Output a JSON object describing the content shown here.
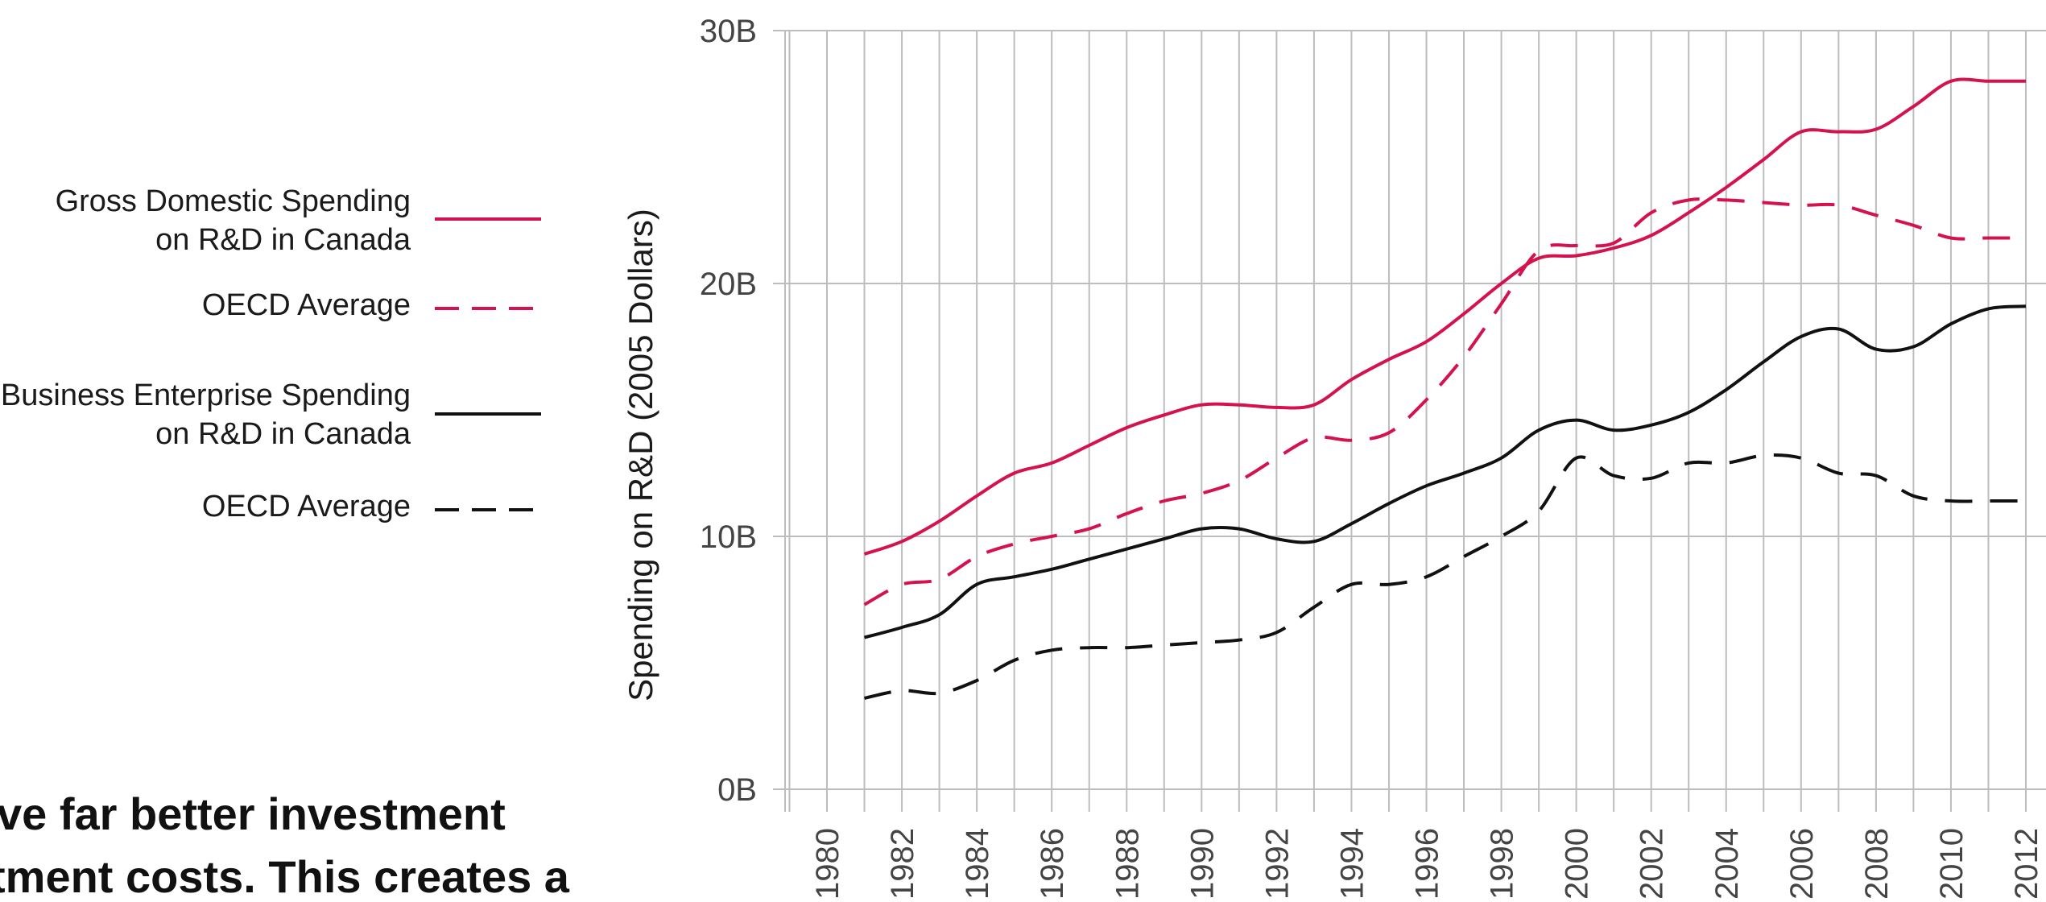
{
  "colors": {
    "canada": "#d4124e",
    "business": "#111111",
    "grid": "#bdbdbd",
    "text": "#1a1a1a"
  },
  "legend": [
    {
      "lines": [
        "Gross Domestic Spending",
        "on R&D in Canada"
      ],
      "color": "#d4124e",
      "style": "solid"
    },
    {
      "lines": [
        "OECD Average"
      ],
      "color": "#d4124e",
      "style": "dashed"
    },
    {
      "lines": [
        "Business Enterprise Spending",
        "on R&D in Canada"
      ],
      "color": "#111111",
      "style": "solid"
    },
    {
      "lines": [
        "OECD Average"
      ],
      "color": "#111111",
      "style": "dashed"
    }
  ],
  "caption_lines": [
    "ve far better investment",
    "tment costs. This creates a"
  ],
  "chart_data": {
    "type": "line",
    "title": "",
    "xlabel": "",
    "ylabel": "Spending on R&D (2005 Dollars)",
    "xlim": [
      1979,
      2012.5
    ],
    "ylim": [
      0,
      30
    ],
    "y_ticks": [
      0,
      10,
      20,
      30
    ],
    "y_tick_labels": [
      "0B",
      "10B",
      "20B",
      "30B"
    ],
    "x_tick_labels": [
      "1980",
      "1982",
      "1984",
      "1986",
      "1988",
      "1990",
      "1992",
      "1994",
      "1996",
      "1998",
      "2000",
      "2002",
      "2004",
      "2006",
      "2008",
      "2010",
      "2012"
    ],
    "x_grid_years": [
      1979,
      1980,
      1981,
      1982,
      1983,
      1984,
      1985,
      1986,
      1987,
      1988,
      1989,
      1990,
      1991,
      1992,
      1993,
      1994,
      1995,
      1996,
      1997,
      1998,
      1999,
      2000,
      2001,
      2002,
      2003,
      2004,
      2005,
      2006,
      2007,
      2008,
      2009,
      2010,
      2011,
      2012
    ],
    "grid": true,
    "legend_position": "left",
    "x": [
      1981,
      1982,
      1983,
      1984,
      1985,
      1986,
      1987,
      1988,
      1989,
      1990,
      1991,
      1992,
      1993,
      1994,
      1995,
      1996,
      1997,
      1998,
      1999,
      2000,
      2001,
      2002,
      2003,
      2004,
      2005,
      2006,
      2007,
      2008,
      2009,
      2010,
      2011,
      2012
    ],
    "series": [
      {
        "name": "Gross Domestic Spending on R&D in Canada",
        "color": "#d4124e",
        "dash": false,
        "values": [
          9.3,
          9.8,
          10.6,
          11.6,
          12.5,
          12.9,
          13.6,
          14.3,
          14.8,
          15.2,
          15.2,
          15.1,
          15.2,
          16.2,
          17.0,
          17.7,
          18.8,
          20.0,
          21.0,
          21.1,
          21.4,
          21.9,
          22.8,
          23.8,
          24.9,
          26.0,
          26.0,
          26.1,
          27.0,
          28.0,
          28.0,
          28.0
        ]
      },
      {
        "name": "OECD Average",
        "color": "#d4124e",
        "dash": true,
        "values": [
          7.3,
          8.1,
          8.3,
          9.2,
          9.7,
          10.0,
          10.3,
          10.9,
          11.4,
          11.7,
          12.2,
          13.1,
          13.9,
          13.8,
          14.1,
          15.4,
          17.1,
          19.2,
          21.3,
          21.5,
          21.6,
          22.8,
          23.3,
          23.3,
          23.2,
          23.1,
          23.1,
          22.7,
          22.3,
          21.8,
          21.8,
          21.8
        ]
      },
      {
        "name": "Business Enterprise Spending on R&D in Canada",
        "color": "#111111",
        "dash": false,
        "values": [
          6.0,
          6.4,
          6.9,
          8.1,
          8.4,
          8.7,
          9.1,
          9.5,
          9.9,
          10.3,
          10.3,
          9.9,
          9.8,
          10.5,
          11.3,
          12.0,
          12.5,
          13.1,
          14.2,
          14.6,
          14.2,
          14.4,
          14.9,
          15.8,
          16.9,
          17.9,
          18.2,
          17.4,
          17.5,
          18.4,
          19.0,
          19.1
        ]
      },
      {
        "name": "OECD Average",
        "color": "#111111",
        "dash": true,
        "values": [
          3.6,
          3.9,
          3.8,
          4.3,
          5.1,
          5.5,
          5.6,
          5.6,
          5.7,
          5.8,
          5.9,
          6.2,
          7.2,
          8.1,
          8.1,
          8.4,
          9.2,
          10.0,
          11.0,
          13.1,
          12.4,
          12.3,
          12.9,
          12.9,
          13.2,
          13.1,
          12.5,
          12.4,
          11.6,
          11.4,
          11.4,
          11.4
        ]
      }
    ]
  }
}
